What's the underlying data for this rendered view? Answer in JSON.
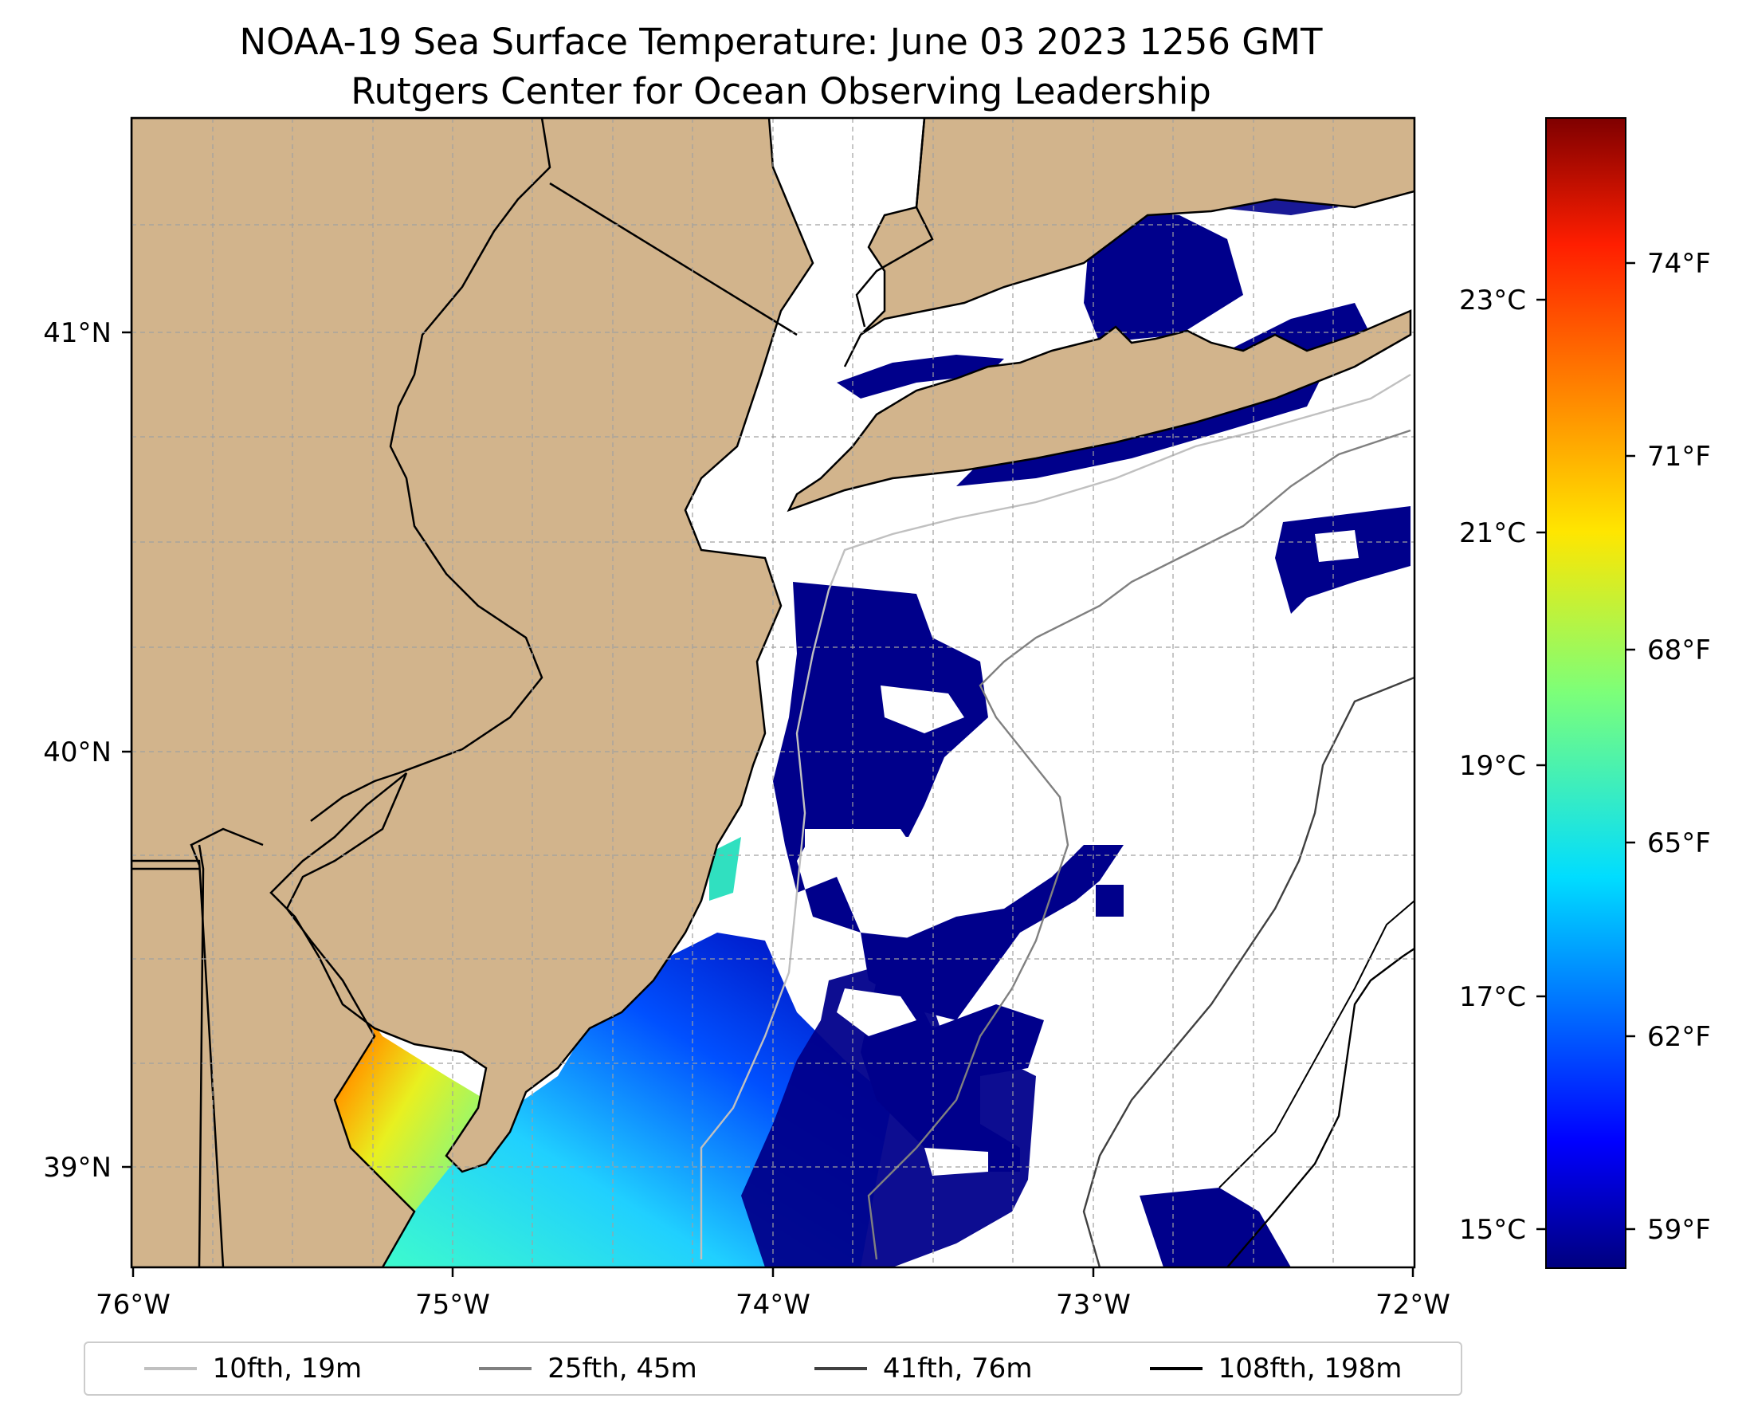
{
  "title": {
    "line1": "NOAA-19 Sea Surface Temperature: June 03 2023 1256 GMT",
    "line2": "Rutgers Center for Ocean Observing Leadership"
  },
  "map": {
    "lon_range": [
      -76,
      -72
    ],
    "lat_range": [
      38.75,
      41.5
    ],
    "lon_ticks": [
      "76°W",
      "75°W",
      "74°W",
      "73°W",
      "72°W"
    ],
    "lat_ticks": [
      "41°N",
      "40°N",
      "39°N"
    ],
    "land_color": "#d2b48c",
    "no_data_color": "#ffffff",
    "cold_color": "#00008b",
    "gridlines": true
  },
  "colorbar": {
    "colormap": "jet",
    "celsius_ticks": [
      "23°C",
      "21°C",
      "19°C",
      "17°C",
      "15°C"
    ],
    "fahrenheit_ticks": [
      "74°F",
      "71°F",
      "68°F",
      "65°F",
      "62°F",
      "59°F"
    ]
  },
  "legend": {
    "items": [
      {
        "label": "10fth, 19m",
        "color": "#c0c0c0"
      },
      {
        "label": "25fth, 45m",
        "color": "#808080"
      },
      {
        "label": "41fth, 76m",
        "color": "#404040"
      },
      {
        "label": "108fth, 198m",
        "color": "#000000"
      }
    ]
  }
}
